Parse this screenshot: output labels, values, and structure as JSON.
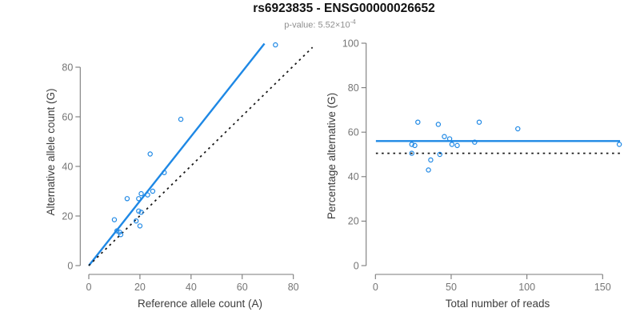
{
  "header": {
    "title": "rs6923835 - ENSG00000026652",
    "subtitle_prefix": "p-value: 5.52×10",
    "subtitle_exponent": "-4"
  },
  "colors": {
    "accent_blue": "#1E88E5",
    "dotted_black": "#1a1a1a",
    "axis_gray": "#7a7a7a",
    "tick_label_gray": "#757575",
    "axis_title_gray": "#3d3d3d",
    "subtitle_gray": "#8f8f8f",
    "background": "#ffffff"
  },
  "chart_data": [
    {
      "id": "allele-count-scatter",
      "type": "scatter",
      "title": "",
      "xlabel": "Reference allele count (A)",
      "ylabel": "Alternative allele count (G)",
      "xlim": [
        0,
        88
      ],
      "ylim": [
        0,
        91
      ],
      "xticks": [
        0,
        20,
        40,
        60,
        80
      ],
      "yticks": [
        0,
        20,
        40,
        60,
        80
      ],
      "grid": false,
      "legend": "none",
      "points": [
        [
          10,
          18.5
        ],
        [
          11,
          14
        ],
        [
          12,
          13.5
        ],
        [
          12.5,
          12.5
        ],
        [
          15,
          27
        ],
        [
          18.5,
          18
        ],
        [
          19.5,
          27
        ],
        [
          19.5,
          22
        ],
        [
          20,
          16
        ],
        [
          20.5,
          29
        ],
        [
          20.5,
          21.5
        ],
        [
          23,
          28.5
        ],
        [
          25,
          30
        ],
        [
          24,
          45
        ],
        [
          29.5,
          37.5
        ],
        [
          36,
          59
        ],
        [
          73,
          89
        ]
      ],
      "lines": [
        {
          "name": "fit-line",
          "x1": 0,
          "y1": 0,
          "x2": 68.7,
          "y2": 89.5,
          "style": "solid",
          "color": "#1E88E5"
        },
        {
          "name": "identity-line",
          "x1": 0,
          "y1": 0,
          "x2": 87.5,
          "y2": 88,
          "style": "dotted",
          "color": "#1a1a1a"
        }
      ]
    },
    {
      "id": "percentage-scatter",
      "type": "scatter",
      "title": "",
      "xlabel": "Total number of reads",
      "ylabel": "Percentage alternative (G)",
      "xlim": [
        0,
        162
      ],
      "ylim": [
        0,
        100
      ],
      "xticks": [
        0,
        50,
        100,
        150
      ],
      "yticks": [
        0,
        20,
        40,
        60,
        80,
        100
      ],
      "grid": false,
      "legend": "none",
      "points": [
        [
          24,
          50.5
        ],
        [
          24,
          54.5
        ],
        [
          26,
          54
        ],
        [
          28,
          64.5
        ],
        [
          35,
          43
        ],
        [
          36.5,
          47.5
        ],
        [
          41.5,
          63.5
        ],
        [
          42.5,
          50
        ],
        [
          45.5,
          58
        ],
        [
          49,
          57
        ],
        [
          50.5,
          54.5
        ],
        [
          54,
          54
        ],
        [
          65.5,
          55.5
        ],
        [
          68.5,
          64.5
        ],
        [
          94,
          61.5
        ],
        [
          161,
          54.5
        ]
      ],
      "lines": [
        {
          "name": "mean-line",
          "x1": 0.3,
          "y1": 56,
          "x2": 161.5,
          "y2": 56,
          "style": "solid",
          "color": "#1E88E5"
        },
        {
          "name": "null-line",
          "x1": 0.3,
          "y1": 50.5,
          "x2": 161.5,
          "y2": 50.5,
          "style": "dotted",
          "color": "#1a1a1a"
        }
      ]
    }
  ]
}
